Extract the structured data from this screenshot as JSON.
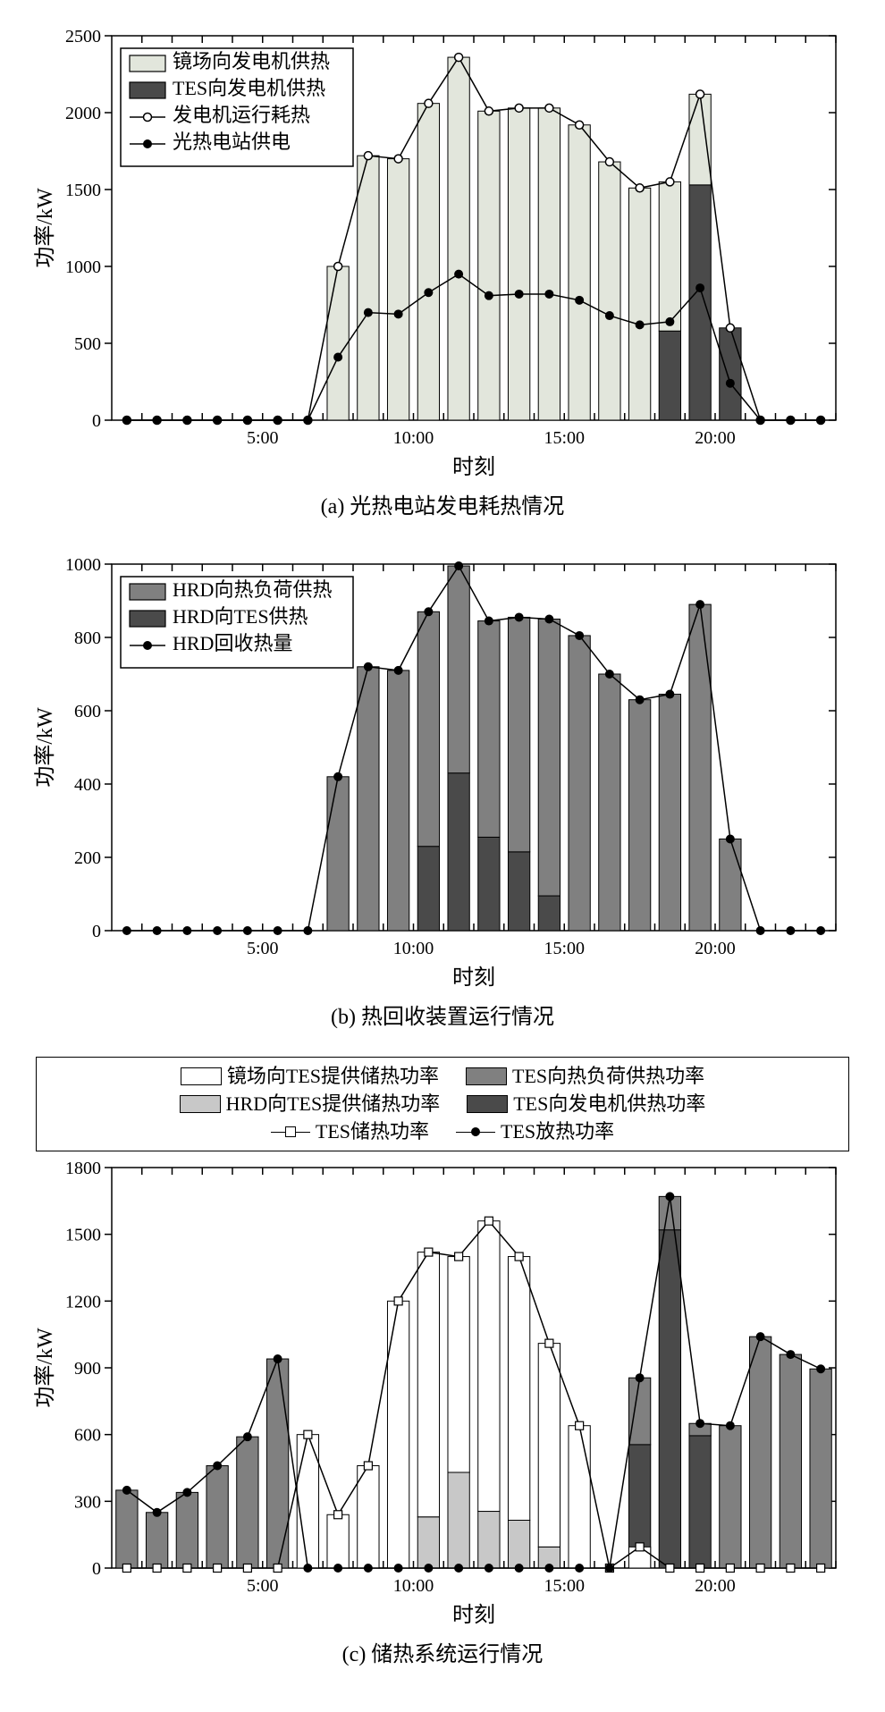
{
  "colors": {
    "white": "#ffffff",
    "light": "#e2e6dc",
    "mid_gray": "#808080",
    "dark_gray": "#4a4a4a",
    "light_gray": "#c8c8c8",
    "black": "#000000"
  },
  "charts": {
    "a": {
      "caption": "(a)  光热电站发电耗热情况",
      "ylabel": "功率/kW",
      "xlabel": "时刻",
      "ylim": [
        0,
        2500
      ],
      "ytick_step": 500,
      "x_ticks": [
        "5:00",
        "10:00",
        "15:00",
        "20:00"
      ],
      "x_tick_pos": [
        5,
        10,
        15,
        20
      ],
      "hours": 24,
      "series": {
        "bar_mirror": {
          "label": "镜场向发电机供热",
          "color": "#e2e6dc",
          "values": [
            0,
            0,
            0,
            0,
            0,
            0,
            0,
            1000,
            1720,
            1700,
            2060,
            2360,
            2010,
            2030,
            2030,
            1920,
            1680,
            1510,
            1550,
            2120,
            600,
            0,
            0,
            0
          ]
        },
        "bar_tes": {
          "label": "TES向发电机供热",
          "color": "#4a4a4a",
          "values": [
            0,
            0,
            0,
            0,
            0,
            0,
            0,
            0,
            0,
            0,
            0,
            0,
            0,
            0,
            0,
            0,
            0,
            0,
            580,
            1530,
            600,
            0,
            0,
            0
          ]
        },
        "line_heat": {
          "label": "发电机运行耗热",
          "marker": "o-open",
          "values": [
            0,
            0,
            0,
            0,
            0,
            0,
            0,
            1000,
            1720,
            1700,
            2060,
            2360,
            2010,
            2030,
            2030,
            1920,
            1680,
            1510,
            1550,
            2120,
            600,
            0,
            0,
            0
          ]
        },
        "line_power": {
          "label": "光热电站供电",
          "marker": "o-fill",
          "values": [
            0,
            0,
            0,
            0,
            0,
            0,
            0,
            410,
            700,
            690,
            830,
            950,
            810,
            820,
            820,
            780,
            680,
            620,
            640,
            860,
            240,
            0,
            0,
            0
          ]
        }
      },
      "legend": [
        {
          "kind": "swatch",
          "color": "#e2e6dc",
          "key": "charts.a.series.bar_mirror.label"
        },
        {
          "kind": "swatch",
          "color": "#4a4a4a",
          "key": "charts.a.series.bar_tes.label"
        },
        {
          "kind": "line",
          "marker": "o-open",
          "key": "charts.a.series.line_heat.label"
        },
        {
          "kind": "line",
          "marker": "o-fill",
          "key": "charts.a.series.line_power.label"
        }
      ]
    },
    "b": {
      "caption": "(b)  热回收装置运行情况",
      "ylabel": "功率/kW",
      "xlabel": "时刻",
      "ylim": [
        0,
        1000
      ],
      "ytick_step": 200,
      "x_ticks": [
        "5:00",
        "10:00",
        "15:00",
        "20:00"
      ],
      "x_tick_pos": [
        5,
        10,
        15,
        20
      ],
      "hours": 24,
      "series": {
        "bar_load": {
          "label": "HRD向热负荷供热",
          "color": "#808080",
          "values": [
            0,
            0,
            0,
            0,
            0,
            0,
            0,
            420,
            720,
            710,
            870,
            995,
            845,
            855,
            850,
            805,
            700,
            630,
            645,
            890,
            250,
            0,
            0,
            0
          ]
        },
        "bar_tes": {
          "label": "HRD向TES供热",
          "color": "#4a4a4a",
          "values": [
            0,
            0,
            0,
            0,
            0,
            0,
            0,
            0,
            0,
            0,
            230,
            430,
            255,
            215,
            95,
            0,
            0,
            0,
            0,
            0,
            0,
            0,
            0,
            0
          ]
        },
        "line_rec": {
          "label": "HRD回收热量",
          "marker": "o-fill",
          "values": [
            0,
            0,
            0,
            0,
            0,
            0,
            0,
            420,
            720,
            710,
            870,
            995,
            845,
            855,
            850,
            805,
            700,
            630,
            645,
            890,
            250,
            0,
            0,
            0
          ]
        }
      },
      "legend": [
        {
          "kind": "swatch",
          "color": "#808080",
          "key": "charts.b.series.bar_load.label"
        },
        {
          "kind": "swatch",
          "color": "#4a4a4a",
          "key": "charts.b.series.bar_tes.label"
        },
        {
          "kind": "line",
          "marker": "o-fill",
          "key": "charts.b.series.line_rec.label"
        }
      ]
    },
    "c": {
      "caption": "(c)  储热系统运行情况",
      "ylabel": "功率/kW",
      "xlabel": "时刻",
      "ylim": [
        0,
        1800
      ],
      "ytick_step": 300,
      "x_ticks": [
        "5:00",
        "10:00",
        "15:00",
        "20:00"
      ],
      "x_tick_pos": [
        5,
        10,
        15,
        20
      ],
      "hours": 24,
      "top_legend": {
        "row1": [
          {
            "kind": "swatch",
            "color": "#ffffff",
            "label": "镜场向TES提供储热功率"
          },
          {
            "kind": "swatch",
            "color": "#808080",
            "label": "TES向热负荷供热功率"
          }
        ],
        "row2": [
          {
            "kind": "swatch",
            "color": "#c8c8c8",
            "label": "HRD向TES提供储热功率"
          },
          {
            "kind": "swatch",
            "color": "#4a4a4a",
            "label": "TES向发电机供热功率"
          }
        ],
        "row3": [
          {
            "kind": "line",
            "marker": "sq",
            "label": "TES储热功率"
          },
          {
            "kind": "line",
            "marker": "dot",
            "label": "TES放热功率"
          }
        ]
      },
      "series": {
        "bar_mirror": {
          "color": "#ffffff",
          "values": [
            0,
            0,
            0,
            0,
            0,
            0,
            600,
            240,
            460,
            1200,
            1420,
            1400,
            1560,
            1400,
            1010,
            640,
            0,
            95,
            0,
            0,
            0,
            0,
            0,
            0
          ]
        },
        "bar_hrd": {
          "color": "#c8c8c8",
          "values": [
            0,
            0,
            0,
            0,
            0,
            0,
            0,
            0,
            0,
            0,
            230,
            430,
            255,
            215,
            95,
            0,
            0,
            0,
            0,
            0,
            0,
            0,
            0,
            0
          ]
        },
        "bar_tes_load": {
          "color": "#808080",
          "values": [
            350,
            250,
            340,
            460,
            590,
            940,
            0,
            0,
            0,
            0,
            0,
            0,
            0,
            0,
            0,
            0,
            0,
            300,
            150,
            55,
            640,
            1040,
            960,
            895
          ]
        },
        "bar_tes_gen": {
          "color": "#4a4a4a",
          "values": [
            0,
            0,
            0,
            0,
            0,
            0,
            0,
            0,
            0,
            0,
            0,
            0,
            0,
            0,
            0,
            0,
            0,
            555,
            1520,
            595,
            0,
            0,
            0,
            0
          ]
        },
        "line_charge": {
          "marker": "sq",
          "values": [
            0,
            0,
            0,
            0,
            0,
            0,
            600,
            240,
            460,
            1200,
            1420,
            1400,
            1560,
            1400,
            1010,
            640,
            0,
            95,
            0,
            0,
            0,
            0,
            0,
            0
          ]
        },
        "line_discharge": {
          "marker": "dot",
          "values": [
            350,
            250,
            340,
            460,
            590,
            940,
            0,
            0,
            0,
            0,
            0,
            0,
            0,
            0,
            0,
            0,
            0,
            855,
            1670,
            650,
            640,
            1040,
            960,
            895
          ]
        }
      }
    }
  }
}
